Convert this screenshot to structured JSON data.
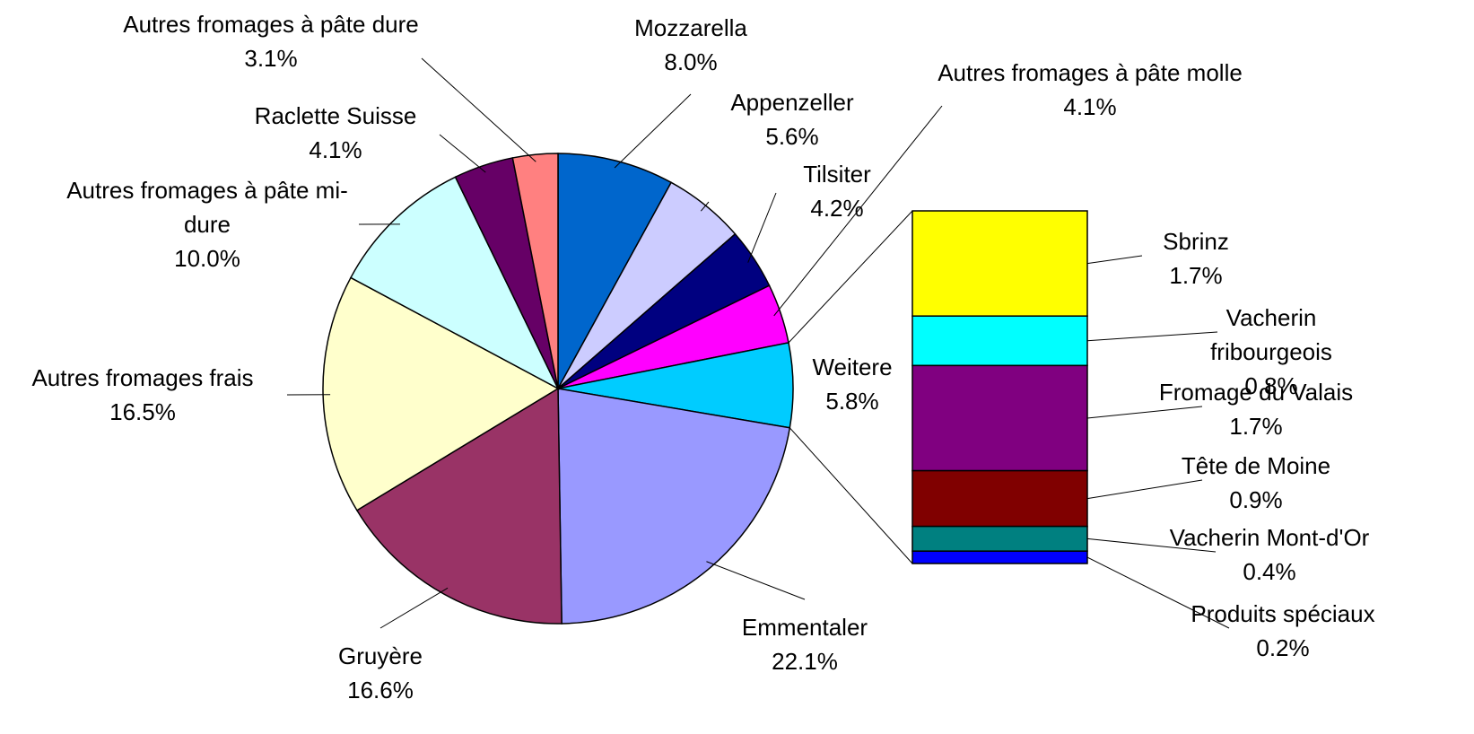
{
  "chart_data": {
    "type": "bar-of-pie",
    "categories": [
      "Mozzarella",
      "Appenzeller",
      "Tilsiter",
      "Autres fromages à pâte molle",
      "Weitere",
      "Emmentaler",
      "Gruyère",
      "Autres fromages frais",
      "Autres fromages à pâte mi-dure",
      "Raclette Suisse",
      "Autres fromages à pâte dure"
    ],
    "values": [
      8.0,
      5.6,
      4.2,
      4.1,
      5.8,
      22.1,
      16.6,
      16.5,
      10.0,
      4.1,
      3.1
    ],
    "value_labels": [
      "8.0%",
      "5.6%",
      "4.2%",
      "4.1%",
      "5.8%",
      "22.1%",
      "16.6%",
      "16.5%",
      "10.0%",
      "4.1%",
      "3.1%"
    ],
    "colors": [
      "#0066cc",
      "#ccccff",
      "#000080",
      "#ff00ff",
      "#00ccff",
      "#9999ff",
      "#993366",
      "#ffffcc",
      "#ccffff",
      "#660066",
      "#ff8080"
    ],
    "bar_categories": [
      "Sbrinz",
      "Vacherin fribourgeois",
      "Fromage du Valais",
      "Tête de Moine",
      "Vacherin Mont-d'Or",
      "Produits spéciaux"
    ],
    "bar_values": [
      1.7,
      0.8,
      1.7,
      0.9,
      0.4,
      0.2
    ],
    "bar_value_labels": [
      "1.7%",
      "0.8%",
      "1.7%",
      "0.9%",
      "0.4%",
      "0.2%"
    ],
    "bar_colors": [
      "#ffff00",
      "#00ffff",
      "#800080",
      "#800000",
      "#008080",
      "#0000ff"
    ]
  }
}
